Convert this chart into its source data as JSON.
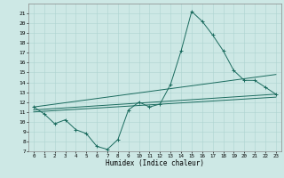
{
  "title": "",
  "xlabel": "Humidex (Indice chaleur)",
  "xlim": [
    -0.5,
    23.5
  ],
  "ylim": [
    7,
    22
  ],
  "yticks": [
    7,
    8,
    9,
    10,
    11,
    12,
    13,
    14,
    15,
    16,
    17,
    18,
    19,
    20,
    21
  ],
  "xticks": [
    0,
    1,
    2,
    3,
    4,
    5,
    6,
    7,
    8,
    9,
    10,
    11,
    12,
    13,
    14,
    15,
    16,
    17,
    18,
    19,
    20,
    21,
    22,
    23
  ],
  "bg_color": "#cde8e5",
  "grid_color": "#aed4d0",
  "line_color": "#1a6b5e",
  "line1_x": [
    0,
    1,
    2,
    3,
    4,
    5,
    6,
    7,
    8,
    9,
    10,
    11,
    12,
    13,
    14,
    15,
    16,
    17,
    18,
    19,
    20,
    21,
    22,
    23
  ],
  "line1_y": [
    11.5,
    10.8,
    9.8,
    10.2,
    9.2,
    8.8,
    7.5,
    7.2,
    8.2,
    11.2,
    12.0,
    11.5,
    11.8,
    13.8,
    17.2,
    21.2,
    20.2,
    18.8,
    17.2,
    15.2,
    14.2,
    14.2,
    13.5,
    12.8
  ],
  "line2_x": [
    0,
    23
  ],
  "line2_y": [
    11.5,
    14.8
  ],
  "line3_x": [
    0,
    23
  ],
  "line3_y": [
    11.2,
    12.8
  ],
  "line4_x": [
    0,
    23
  ],
  "line4_y": [
    11.0,
    12.5
  ]
}
